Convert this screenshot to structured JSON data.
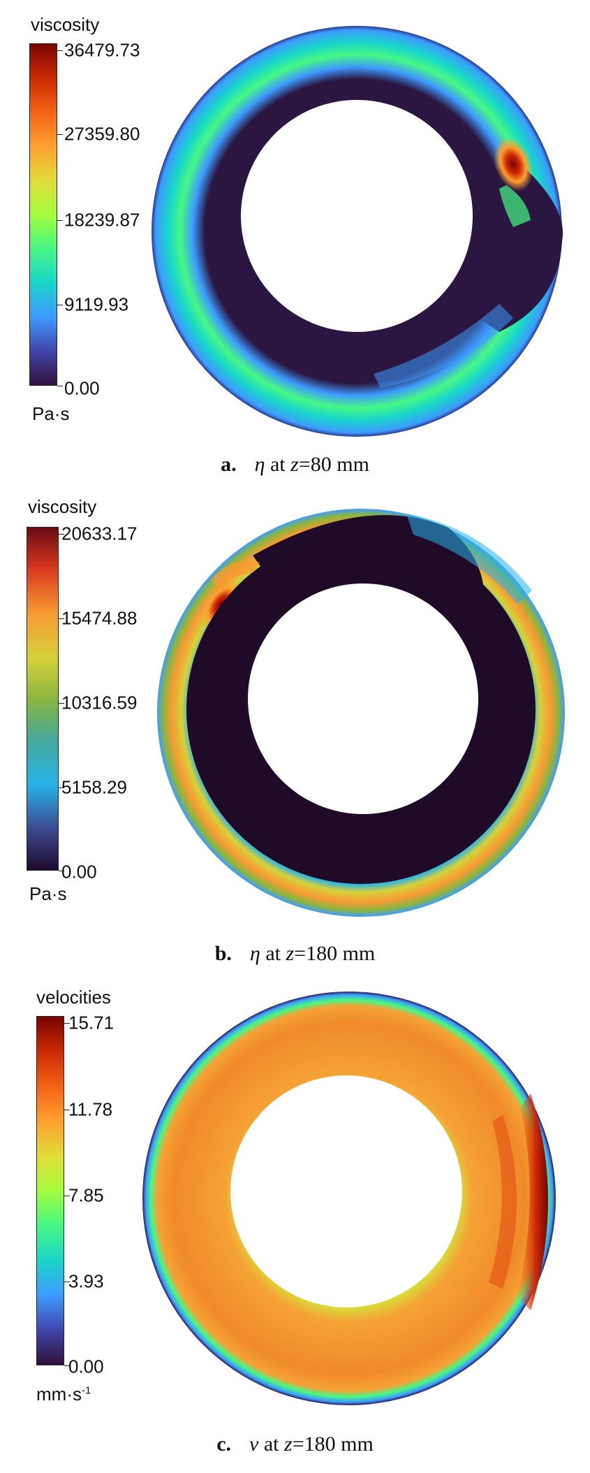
{
  "panels": [
    {
      "legend_title": "viscosity",
      "ticks": [
        "36479.73",
        "27359.80",
        "18239.87",
        "9119.93",
        "0.00"
      ],
      "unit": "Pa·s",
      "unit_sup": "",
      "caption_letter": "a.",
      "caption_symbol": "η",
      "caption_at": "at",
      "caption_z": "z",
      "caption_value": "=80 mm",
      "colormap": "turbo"
    },
    {
      "legend_title": "viscosity",
      "ticks": [
        "20633.17",
        "15474.88",
        "10316.59",
        "5158.29",
        "0.00"
      ],
      "unit": "Pa·s",
      "unit_sup": "",
      "caption_letter": "b.",
      "caption_symbol": "η",
      "caption_at": "at",
      "caption_z": "z",
      "caption_value": "=180 mm",
      "colormap": "turbo"
    },
    {
      "legend_title": "velocities",
      "ticks": [
        "15.71",
        "11.78",
        "7.85",
        "3.93",
        "0.00"
      ],
      "unit": "mm·s",
      "unit_sup": "-1",
      "caption_letter": "c.",
      "caption_symbol": "v",
      "caption_at": "at",
      "caption_z": "z",
      "caption_value": "=180 mm",
      "colormap": "turbo"
    }
  ],
  "colors": {
    "c0": "#30123b",
    "c1": "#2a3b8f",
    "c2": "#3e9bfe",
    "c3": "#1fc9dd",
    "c4": "#46f884",
    "c5": "#a4fc3c",
    "c6": "#e1dd37",
    "c7": "#fea030",
    "c8": "#f36315",
    "c9": "#cb2a04",
    "c10": "#7a0403",
    "dark_core": "#2b1641",
    "dark_core_b": "#1f0a28"
  }
}
